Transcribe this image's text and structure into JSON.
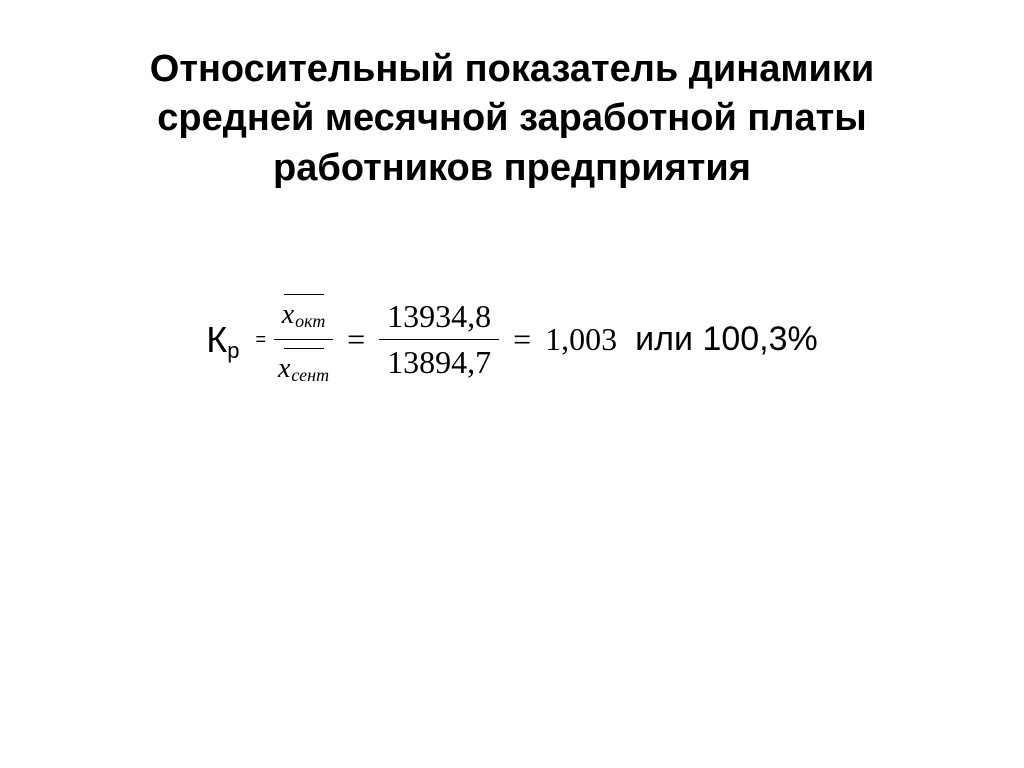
{
  "title": "Относительный показатель динамики средней месячной заработной платы работников предприятия",
  "formula": {
    "coefficient_label": "К",
    "coefficient_subscript": "р",
    "equals_symbol": "=",
    "xbar_var": "x",
    "xbar_numerator_sub": "окт",
    "xbar_denominator_sub": "сент",
    "numeric_numerator": "13934,8",
    "numeric_denominator": "13894,7",
    "result_value": "1,003",
    "or_label": "или",
    "percent_value": "100,3%"
  },
  "colors": {
    "background": "#ffffff",
    "text": "#000000"
  }
}
